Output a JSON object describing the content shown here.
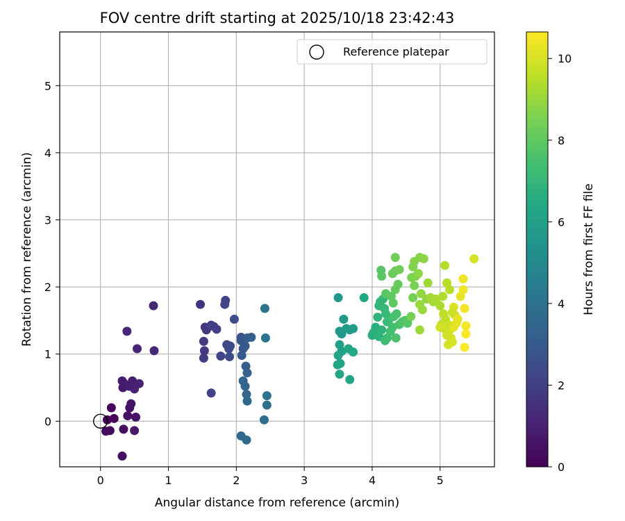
{
  "chart_data": {
    "type": "scatter",
    "title": "FOV centre drift starting at 2025/10/18 23:42:43",
    "xlabel": "Angular distance from reference (arcmin)",
    "ylabel": "Rotation from reference (arcmin)",
    "xlim": [
      -0.6,
      5.8
    ],
    "ylim": [
      -0.68,
      5.8
    ],
    "xticks": [
      0,
      1,
      2,
      3,
      4,
      5
    ],
    "yticks": [
      0,
      1,
      2,
      3,
      4,
      5
    ],
    "grid": true,
    "legend": {
      "placement": "top-right",
      "entries": [
        "Reference platepar"
      ]
    },
    "reference_point": {
      "x": 0,
      "y": 0,
      "label": "Reference platepar"
    },
    "colorbar": {
      "label": "Hours from first FF file",
      "range": [
        0,
        10.65
      ],
      "ticks": [
        0,
        2,
        4,
        6,
        8,
        10
      ],
      "colormap": "viridis"
    },
    "points": [
      {
        "x": 0.1,
        "y": 0.02,
        "h": 0.1
      },
      {
        "x": 0.16,
        "y": 0.2,
        "h": 0.2
      },
      {
        "x": 0.2,
        "y": 0.04,
        "h": 0.2
      },
      {
        "x": 0.14,
        "y": -0.14,
        "h": 0.3
      },
      {
        "x": 0.08,
        "y": -0.15,
        "h": 0.3
      },
      {
        "x": 0.32,
        "y": -0.52,
        "h": 0.4
      },
      {
        "x": 0.34,
        "y": -0.12,
        "h": 0.4
      },
      {
        "x": 0.4,
        "y": 0.08,
        "h": 0.5
      },
      {
        "x": 0.43,
        "y": 0.2,
        "h": 0.5
      },
      {
        "x": 0.45,
        "y": 0.26,
        "h": 0.6
      },
      {
        "x": 0.52,
        "y": 0.06,
        "h": 0.6
      },
      {
        "x": 0.5,
        "y": -0.14,
        "h": 0.7
      },
      {
        "x": 0.33,
        "y": 0.5,
        "h": 0.7
      },
      {
        "x": 0.35,
        "y": 0.56,
        "h": 0.8
      },
      {
        "x": 0.32,
        "y": 0.6,
        "h": 0.8
      },
      {
        "x": 0.42,
        "y": 0.52,
        "h": 0.9
      },
      {
        "x": 0.47,
        "y": 0.6,
        "h": 0.9
      },
      {
        "x": 0.5,
        "y": 0.48,
        "h": 1.0
      },
      {
        "x": 0.57,
        "y": 0.56,
        "h": 1.0
      },
      {
        "x": 0.39,
        "y": 1.34,
        "h": 1.1
      },
      {
        "x": 0.54,
        "y": 1.08,
        "h": 1.1
      },
      {
        "x": 0.78,
        "y": 1.72,
        "h": 1.2
      },
      {
        "x": 0.79,
        "y": 1.05,
        "h": 1.2
      },
      {
        "x": 1.47,
        "y": 1.74,
        "h": 1.6
      },
      {
        "x": 1.54,
        "y": 1.4,
        "h": 1.7
      },
      {
        "x": 1.56,
        "y": 1.36,
        "h": 1.7
      },
      {
        "x": 1.52,
        "y": 1.19,
        "h": 1.8
      },
      {
        "x": 1.53,
        "y": 1.05,
        "h": 1.8
      },
      {
        "x": 1.52,
        "y": 0.94,
        "h": 1.9
      },
      {
        "x": 1.63,
        "y": 1.43,
        "h": 1.9
      },
      {
        "x": 1.67,
        "y": 1.41,
        "h": 2.0
      },
      {
        "x": 1.71,
        "y": 1.37,
        "h": 2.0
      },
      {
        "x": 1.63,
        "y": 0.42,
        "h": 2.1
      },
      {
        "x": 1.84,
        "y": 1.8,
        "h": 2.1
      },
      {
        "x": 1.83,
        "y": 1.74,
        "h": 2.2
      },
      {
        "x": 1.77,
        "y": 0.97,
        "h": 2.2
      },
      {
        "x": 1.86,
        "y": 1.14,
        "h": 2.3
      },
      {
        "x": 1.89,
        "y": 1.08,
        "h": 2.3
      },
      {
        "x": 1.91,
        "y": 1.12,
        "h": 2.4
      },
      {
        "x": 1.9,
        "y": 0.96,
        "h": 2.4
      },
      {
        "x": 1.97,
        "y": 1.52,
        "h": 2.5
      },
      {
        "x": 2.07,
        "y": 1.25,
        "h": 2.7
      },
      {
        "x": 2.07,
        "y": 1.2,
        "h": 2.8
      },
      {
        "x": 2.1,
        "y": 1.08,
        "h": 2.9
      },
      {
        "x": 2.08,
        "y": 0.98,
        "h": 3.0
      },
      {
        "x": 2.13,
        "y": 1.12,
        "h": 3.0
      },
      {
        "x": 2.16,
        "y": 1.24,
        "h": 3.1
      },
      {
        "x": 2.22,
        "y": 1.25,
        "h": 3.2
      },
      {
        "x": 2.14,
        "y": 0.82,
        "h": 3.2
      },
      {
        "x": 2.16,
        "y": 0.72,
        "h": 3.3
      },
      {
        "x": 2.1,
        "y": 0.6,
        "h": 3.4
      },
      {
        "x": 2.13,
        "y": 0.52,
        "h": 3.5
      },
      {
        "x": 2.15,
        "y": 0.4,
        "h": 3.5
      },
      {
        "x": 2.16,
        "y": 0.3,
        "h": 3.6
      },
      {
        "x": 2.07,
        "y": -0.22,
        "h": 3.6
      },
      {
        "x": 2.15,
        "y": -0.28,
        "h": 3.7
      },
      {
        "x": 2.41,
        "y": 0.02,
        "h": 3.8
      },
      {
        "x": 2.45,
        "y": 0.24,
        "h": 3.9
      },
      {
        "x": 2.45,
        "y": 0.38,
        "h": 4.0
      },
      {
        "x": 2.43,
        "y": 1.24,
        "h": 4.1
      },
      {
        "x": 2.42,
        "y": 1.68,
        "h": 4.1
      },
      {
        "x": 3.5,
        "y": 1.84,
        "h": 5.6
      },
      {
        "x": 3.52,
        "y": 1.34,
        "h": 5.7
      },
      {
        "x": 3.55,
        "y": 1.3,
        "h": 5.7
      },
      {
        "x": 3.58,
        "y": 1.52,
        "h": 5.8
      },
      {
        "x": 3.62,
        "y": 1.38,
        "h": 5.8
      },
      {
        "x": 3.67,
        "y": 1.36,
        "h": 5.9
      },
      {
        "x": 3.72,
        "y": 1.38,
        "h": 5.9
      },
      {
        "x": 3.52,
        "y": 1.14,
        "h": 6.0
      },
      {
        "x": 3.55,
        "y": 1.04,
        "h": 6.0
      },
      {
        "x": 3.5,
        "y": 0.98,
        "h": 6.1
      },
      {
        "x": 3.49,
        "y": 0.84,
        "h": 6.1
      },
      {
        "x": 3.53,
        "y": 0.86,
        "h": 6.2
      },
      {
        "x": 3.52,
        "y": 0.7,
        "h": 6.2
      },
      {
        "x": 3.67,
        "y": 0.62,
        "h": 6.3
      },
      {
        "x": 3.65,
        "y": 1.08,
        "h": 6.3
      },
      {
        "x": 3.72,
        "y": 1.03,
        "h": 6.4
      },
      {
        "x": 3.88,
        "y": 1.84,
        "h": 6.4
      },
      {
        "x": 4.0,
        "y": 1.28,
        "h": 6.6
      },
      {
        "x": 4.05,
        "y": 1.4,
        "h": 6.7
      },
      {
        "x": 4.02,
        "y": 1.32,
        "h": 6.7
      },
      {
        "x": 4.1,
        "y": 1.26,
        "h": 6.8
      },
      {
        "x": 4.14,
        "y": 1.36,
        "h": 6.8
      },
      {
        "x": 4.08,
        "y": 1.55,
        "h": 6.9
      },
      {
        "x": 4.1,
        "y": 1.72,
        "h": 6.9
      },
      {
        "x": 4.12,
        "y": 1.78,
        "h": 7.0
      },
      {
        "x": 4.16,
        "y": 1.82,
        "h": 7.0
      },
      {
        "x": 4.18,
        "y": 1.68,
        "h": 7.1
      },
      {
        "x": 4.2,
        "y": 1.6,
        "h": 7.1
      },
      {
        "x": 4.22,
        "y": 1.48,
        "h": 7.2
      },
      {
        "x": 4.25,
        "y": 1.52,
        "h": 7.2
      },
      {
        "x": 4.19,
        "y": 1.2,
        "h": 7.3
      },
      {
        "x": 4.22,
        "y": 1.24,
        "h": 7.3
      },
      {
        "x": 4.27,
        "y": 1.34,
        "h": 7.4
      },
      {
        "x": 4.3,
        "y": 1.4,
        "h": 7.4
      },
      {
        "x": 4.32,
        "y": 1.56,
        "h": 7.5
      },
      {
        "x": 4.36,
        "y": 1.6,
        "h": 7.5
      },
      {
        "x": 4.35,
        "y": 1.24,
        "h": 7.6
      },
      {
        "x": 4.4,
        "y": 1.44,
        "h": 7.6
      },
      {
        "x": 4.44,
        "y": 1.48,
        "h": 7.7
      },
      {
        "x": 4.48,
        "y": 1.5,
        "h": 7.7
      },
      {
        "x": 4.52,
        "y": 1.46,
        "h": 7.8
      },
      {
        "x": 4.13,
        "y": 2.25,
        "h": 7.8
      },
      {
        "x": 4.14,
        "y": 2.16,
        "h": 7.9
      },
      {
        "x": 4.2,
        "y": 1.9,
        "h": 7.9
      },
      {
        "x": 4.28,
        "y": 1.86,
        "h": 8.0
      },
      {
        "x": 4.31,
        "y": 1.76,
        "h": 8.0
      },
      {
        "x": 4.34,
        "y": 1.96,
        "h": 8.1
      },
      {
        "x": 4.38,
        "y": 2.04,
        "h": 8.1
      },
      {
        "x": 4.3,
        "y": 2.2,
        "h": 8.2
      },
      {
        "x": 4.34,
        "y": 2.24,
        "h": 8.2
      },
      {
        "x": 4.4,
        "y": 2.26,
        "h": 8.3
      },
      {
        "x": 4.34,
        "y": 2.44,
        "h": 8.3
      },
      {
        "x": 4.57,
        "y": 1.56,
        "h": 8.4
      },
      {
        "x": 4.6,
        "y": 1.84,
        "h": 8.4
      },
      {
        "x": 4.62,
        "y": 2.02,
        "h": 8.5
      },
      {
        "x": 4.58,
        "y": 2.14,
        "h": 8.5
      },
      {
        "x": 4.64,
        "y": 2.16,
        "h": 8.6
      },
      {
        "x": 4.6,
        "y": 2.3,
        "h": 8.6
      },
      {
        "x": 4.62,
        "y": 2.38,
        "h": 8.7
      },
      {
        "x": 4.7,
        "y": 2.44,
        "h": 8.7
      },
      {
        "x": 4.76,
        "y": 2.42,
        "h": 8.8
      },
      {
        "x": 4.68,
        "y": 2.2,
        "h": 8.8
      },
      {
        "x": 4.72,
        "y": 1.9,
        "h": 8.9
      },
      {
        "x": 4.8,
        "y": 1.82,
        "h": 8.9
      },
      {
        "x": 4.7,
        "y": 1.74,
        "h": 9.0
      },
      {
        "x": 4.74,
        "y": 1.66,
        "h": 9.0
      },
      {
        "x": 4.7,
        "y": 1.36,
        "h": 9.1
      },
      {
        "x": 4.82,
        "y": 2.06,
        "h": 9.1
      },
      {
        "x": 4.86,
        "y": 1.84,
        "h": 9.2
      },
      {
        "x": 4.9,
        "y": 1.78,
        "h": 9.2
      },
      {
        "x": 4.94,
        "y": 1.82,
        "h": 9.3
      },
      {
        "x": 5.0,
        "y": 1.72,
        "h": 9.3
      },
      {
        "x": 5.04,
        "y": 1.86,
        "h": 9.4
      },
      {
        "x": 5.07,
        "y": 2.32,
        "h": 9.4
      },
      {
        "x": 5.1,
        "y": 2.06,
        "h": 9.5
      },
      {
        "x": 5.14,
        "y": 1.96,
        "h": 9.5
      },
      {
        "x": 5.05,
        "y": 1.6,
        "h": 9.6
      },
      {
        "x": 5.08,
        "y": 1.52,
        "h": 9.6
      },
      {
        "x": 5.02,
        "y": 1.44,
        "h": 9.7
      },
      {
        "x": 5.06,
        "y": 1.38,
        "h": 9.7
      },
      {
        "x": 5.12,
        "y": 1.44,
        "h": 9.8
      },
      {
        "x": 5.14,
        "y": 1.36,
        "h": 9.8
      },
      {
        "x": 5.1,
        "y": 1.28,
        "h": 9.9
      },
      {
        "x": 5.16,
        "y": 1.24,
        "h": 9.9
      },
      {
        "x": 5.12,
        "y": 1.14,
        "h": 10.0
      },
      {
        "x": 5.18,
        "y": 1.18,
        "h": 10.0
      },
      {
        "x": 5.2,
        "y": 1.7,
        "h": 10.1
      },
      {
        "x": 5.22,
        "y": 1.58,
        "h": 10.1
      },
      {
        "x": 5.24,
        "y": 1.46,
        "h": 10.2
      },
      {
        "x": 5.2,
        "y": 1.4,
        "h": 10.2
      },
      {
        "x": 5.26,
        "y": 1.52,
        "h": 10.3
      },
      {
        "x": 5.3,
        "y": 1.86,
        "h": 10.3
      },
      {
        "x": 5.34,
        "y": 2.12,
        "h": 10.4
      },
      {
        "x": 5.34,
        "y": 1.96,
        "h": 10.4
      },
      {
        "x": 5.36,
        "y": 1.68,
        "h": 10.5
      },
      {
        "x": 5.38,
        "y": 1.42,
        "h": 10.5
      },
      {
        "x": 5.36,
        "y": 1.1,
        "h": 10.6
      },
      {
        "x": 5.38,
        "y": 1.3,
        "h": 10.6
      },
      {
        "x": 5.5,
        "y": 2.42,
        "h": 10.0
      },
      {
        "x": 5.0,
        "y": 1.4,
        "h": 9.9
      },
      {
        "x": 5.18,
        "y": 1.62,
        "h": 9.8
      }
    ]
  }
}
